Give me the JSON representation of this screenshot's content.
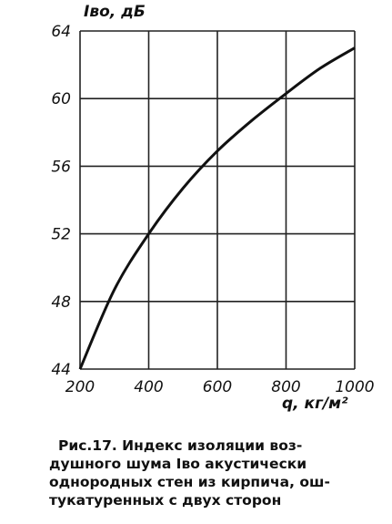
{
  "chart_data": {
    "type": "line",
    "y_label": "Iво, дБ",
    "x_label": "q, кг/м²",
    "caption": [
      "Рис.17. Индекс изоляции воз-",
      "душного шума Iво акустически",
      "однородных стен из кирпича, ош-",
      "тукатуренных с двух сторон"
    ],
    "x": [
      200,
      300,
      400,
      500,
      600,
      700,
      800,
      900,
      1000
    ],
    "values": [
      44,
      48.7,
      52,
      54.7,
      56.9,
      58.7,
      60.3,
      61.8,
      63
    ],
    "color": "#111111",
    "xlim": [
      200,
      1000
    ],
    "xticks": [
      200,
      400,
      600,
      800,
      1000
    ],
    "ylim": [
      44,
      64
    ],
    "yticks": [
      44,
      48,
      52,
      56,
      60,
      64
    ],
    "grid": true
  }
}
